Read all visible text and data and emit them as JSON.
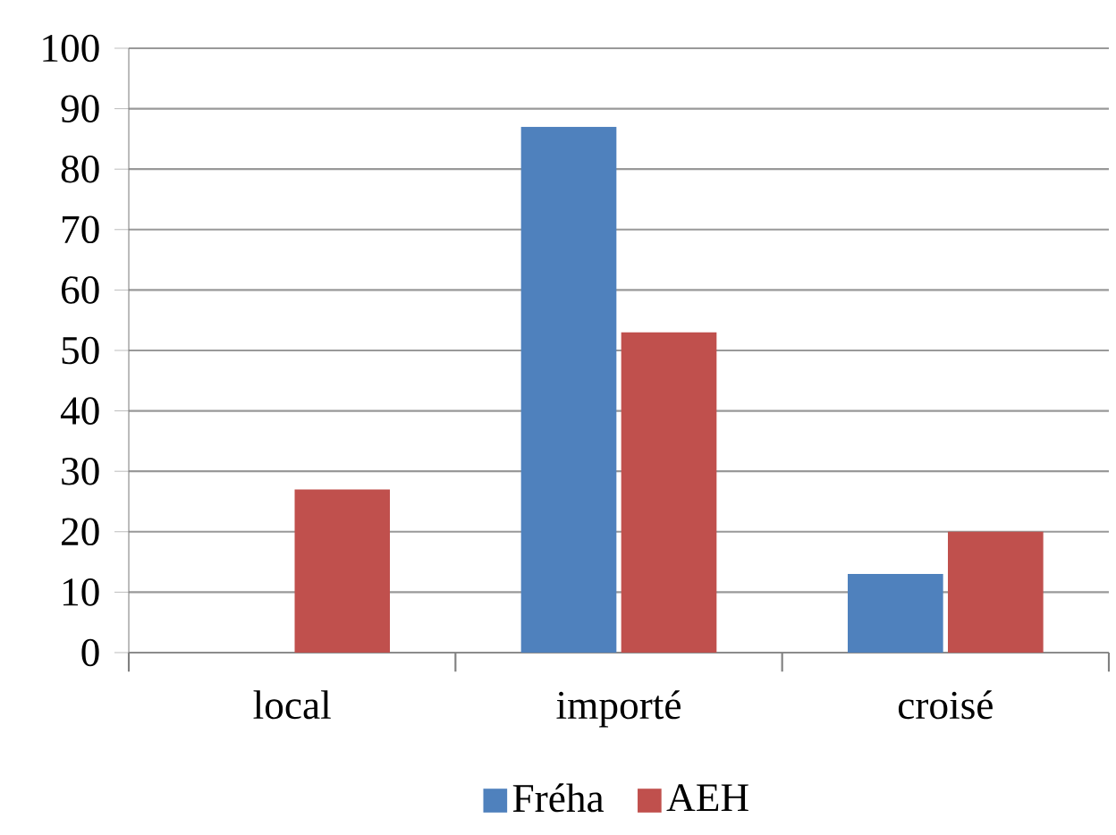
{
  "chart_data": {
    "type": "bar",
    "categories": [
      "local",
      "importé",
      "croisé"
    ],
    "series": [
      {
        "name": "Fréha",
        "color": "#4f81bd",
        "values": [
          0,
          87,
          13
        ]
      },
      {
        "name": "AEH",
        "color": "#c0504d",
        "values": [
          27,
          53,
          20
        ]
      }
    ],
    "ylim": [
      0,
      100
    ],
    "yticks": [
      0,
      10,
      20,
      30,
      40,
      50,
      60,
      70,
      80,
      90,
      100
    ],
    "grid": "y",
    "legend": "bottom"
  }
}
